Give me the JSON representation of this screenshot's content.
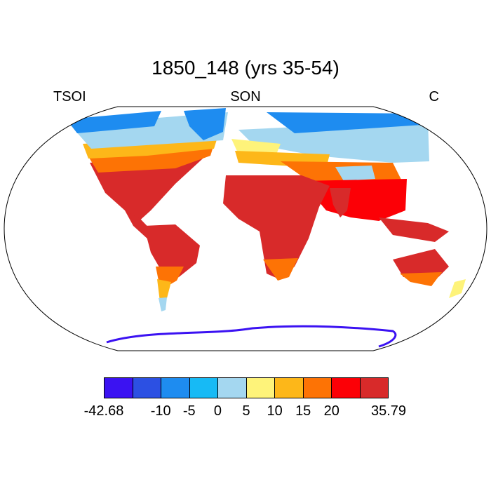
{
  "title": "1850_148 (yrs 35-54)",
  "left_label": "TSOI",
  "center_label": "SON",
  "right_label": "C",
  "colorbar": {
    "colors": [
      "#3b12f2",
      "#2c50e3",
      "#1e8cf0",
      "#17baf5",
      "#a4d7f0",
      "#fef37a",
      "#fdb719",
      "#fd7305",
      "#fc0006",
      "#d82a2a"
    ],
    "labels": [
      "-42.68",
      "-10",
      "-5",
      "0",
      "5",
      "10",
      "15",
      "20",
      "35.79"
    ],
    "boundaries": [
      -42.68,
      -20,
      -10,
      -5,
      0,
      5,
      10,
      15,
      20,
      25,
      35.79
    ]
  }
}
